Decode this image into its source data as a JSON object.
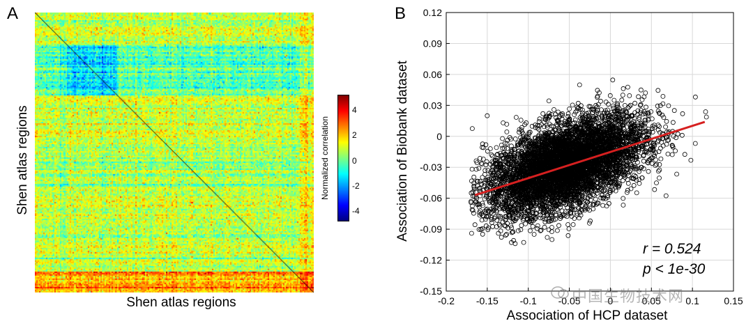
{
  "panel_a": {
    "letter": "A",
    "xlabel": "Shen atlas regions",
    "ylabel": "Shen atlas regions",
    "colorbar": {
      "label": "Normalized correlation",
      "ticks": [
        "4",
        "2",
        "0",
        "-2",
        "-4"
      ],
      "tick_values": [
        4,
        2,
        0,
        -2,
        -4
      ],
      "range": [
        -4.8,
        5.2
      ],
      "colormap": "jet"
    }
  },
  "panel_b": {
    "letter": "B",
    "annotation_r": "r = 0.524",
    "annotation_p": "p < 1e-30"
  },
  "watermark": "中国生物技术网",
  "chart_data": [
    {
      "type": "heatmap",
      "title": "",
      "xlabel": "Shen atlas regions",
      "ylabel": "Shen atlas regions",
      "colorbar_label": "Normalized correlation",
      "value_range": [
        -4,
        4
      ]
    },
    {
      "type": "scatter",
      "title": "",
      "xlabel": "Association of HCP dataset",
      "ylabel": "Association of Biobank dataset",
      "xlim": [
        -0.2,
        0.15
      ],
      "ylim": [
        -0.15,
        0.12
      ],
      "xticks": [
        -0.2,
        -0.15,
        -0.1,
        -0.05,
        0,
        0.05,
        0.1,
        0.15
      ],
      "xtick_labels": [
        "-0.2",
        "-0.15",
        "-0.1",
        "-0.05",
        "0",
        "0.05",
        "0.1",
        "0.15"
      ],
      "yticks": [
        -0.15,
        -0.12,
        -0.09,
        -0.06,
        -0.03,
        0,
        0.03,
        0.06,
        0.09,
        0.12
      ],
      "ytick_labels": [
        "-0.15",
        "-0.12",
        "-0.09",
        "-0.06",
        "-0.03",
        "0",
        "0.03",
        "0.06",
        "0.09",
        "0.12"
      ],
      "grid": true,
      "marker": "open circle",
      "marker_color": "#000000",
      "point_cloud": {
        "x_center": -0.055,
        "y_center": -0.028,
        "x_sd": 0.048,
        "y_sd": 0.024,
        "correlation": 0.524,
        "x_range": [
          -0.17,
          0.12
        ]
      },
      "fit_line": {
        "x": [
          -0.165,
          0.115
        ],
        "y": [
          -0.057,
          0.014
        ],
        "color": "#d62020"
      },
      "annotations": [
        "r = 0.524",
        "p < 1e-30"
      ]
    }
  ]
}
